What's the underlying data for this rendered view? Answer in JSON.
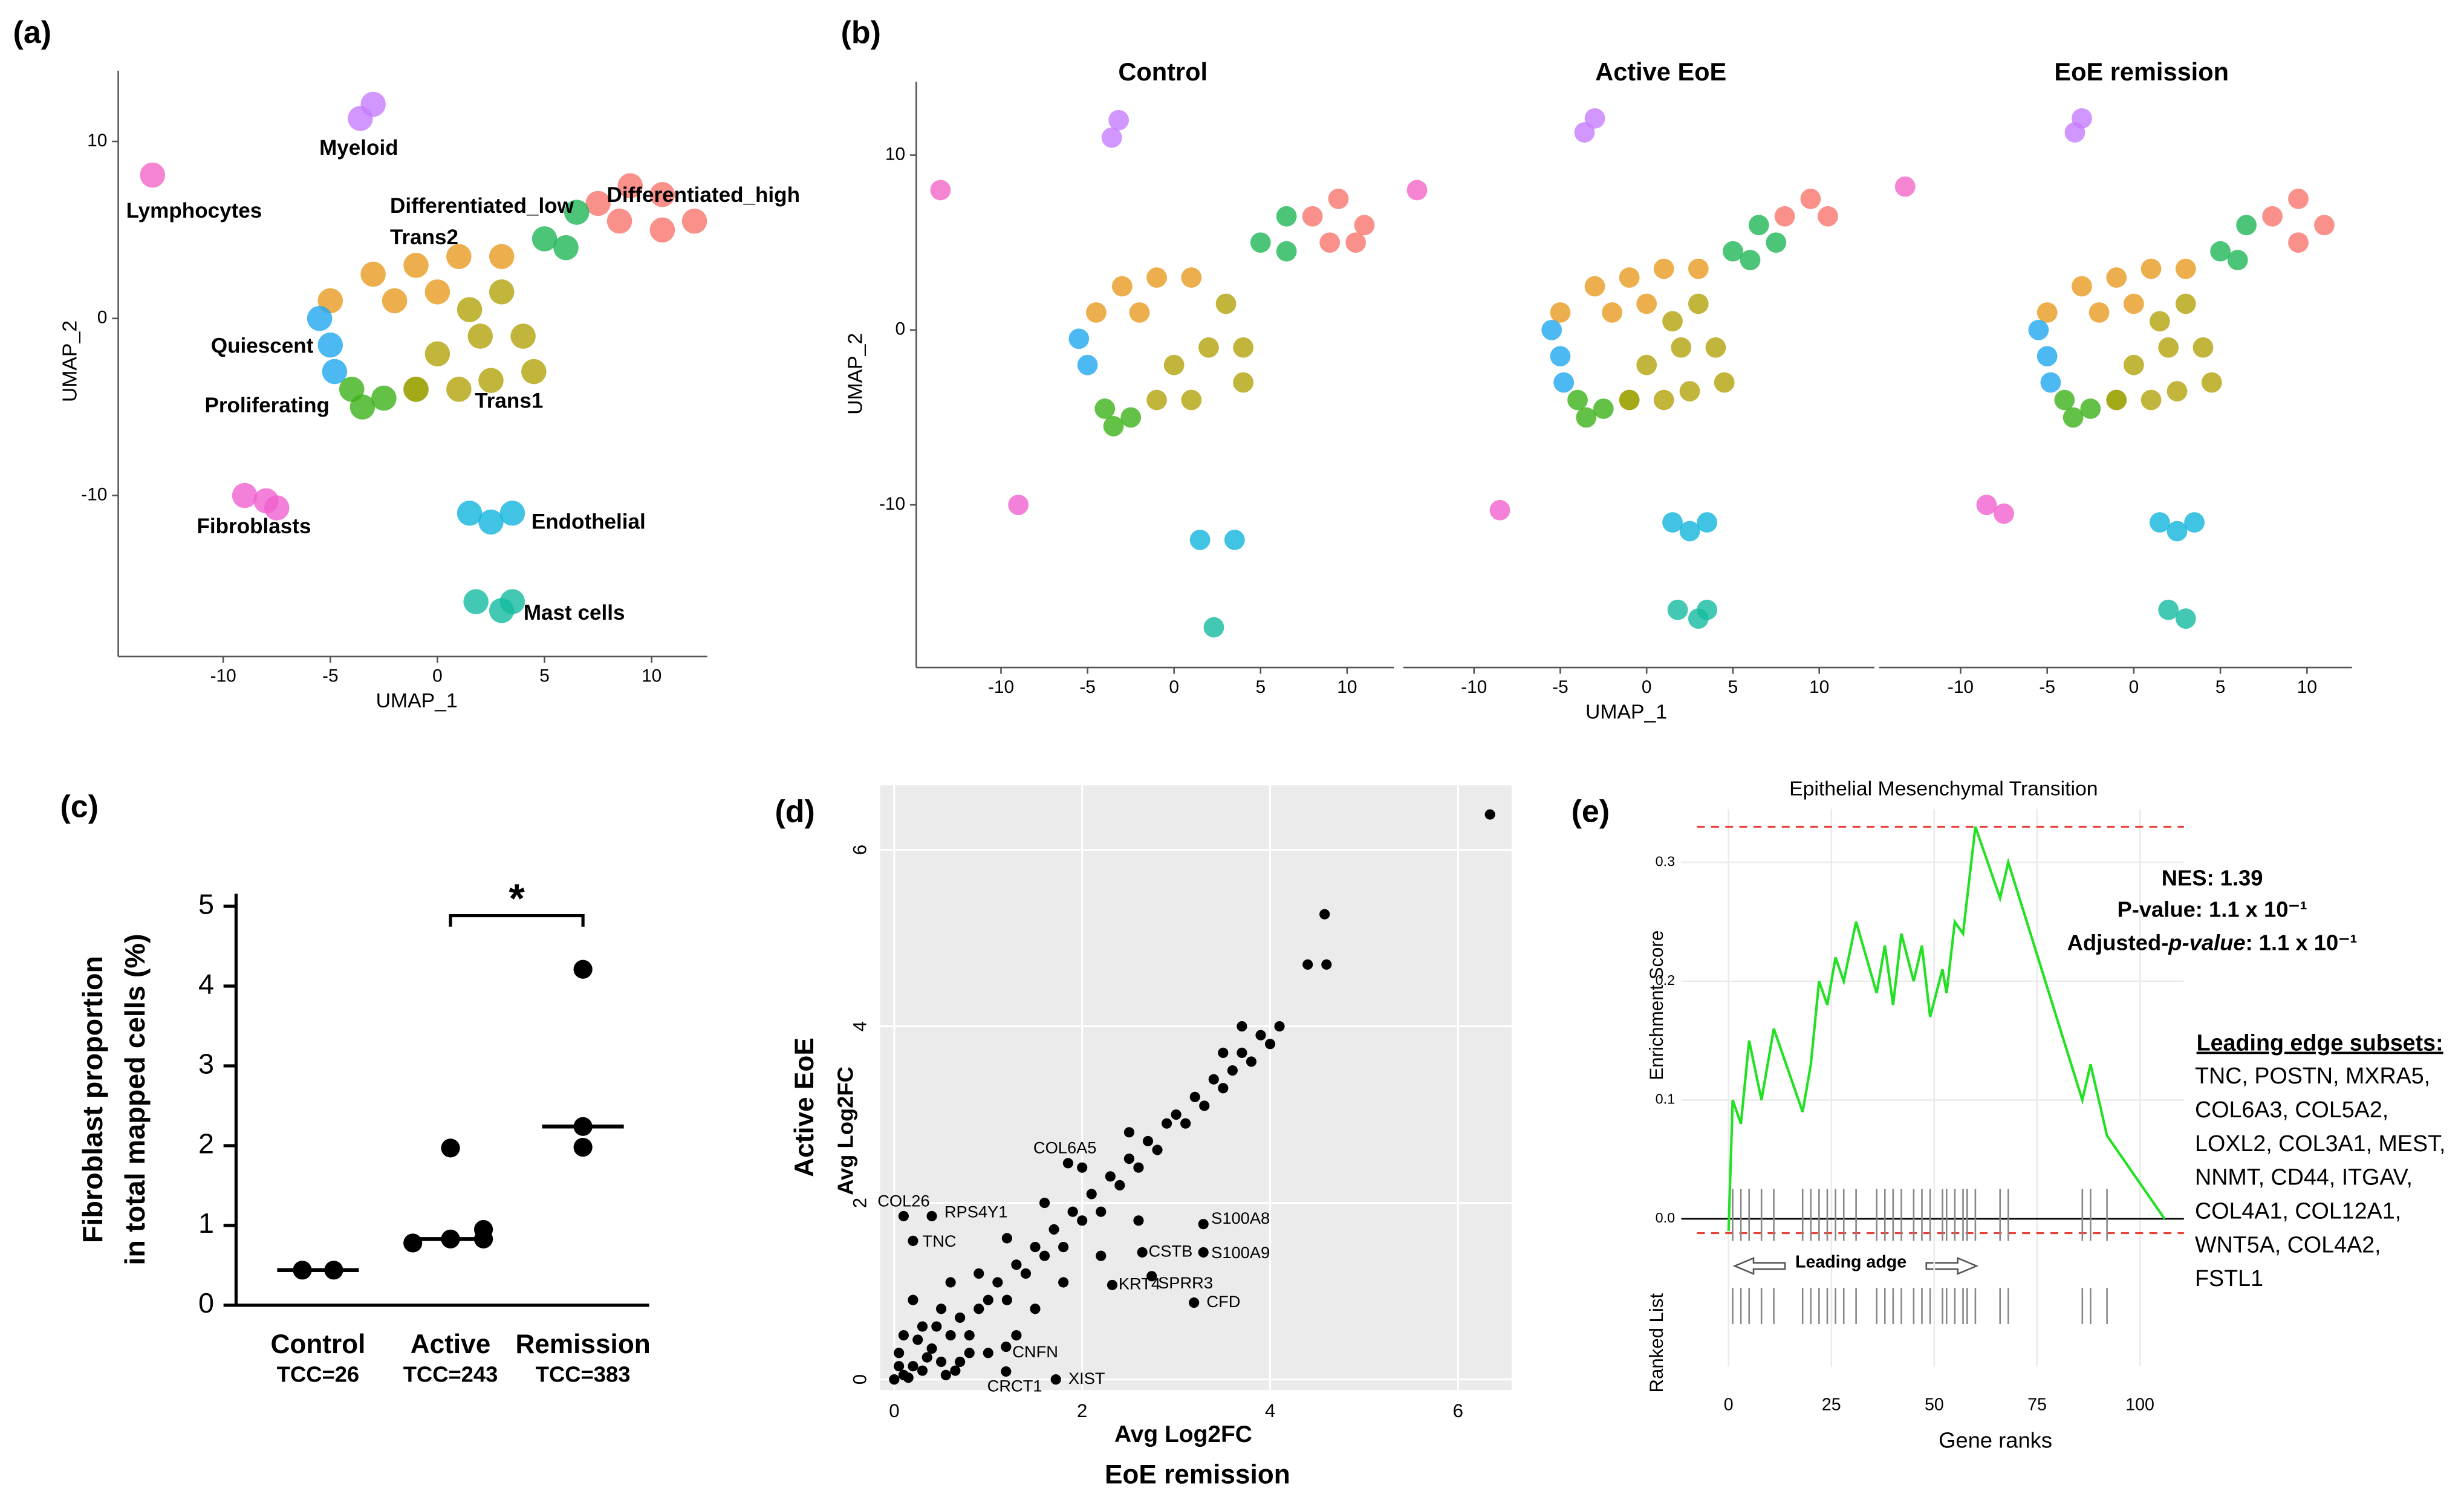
{
  "chart_data": [
    {
      "type": "scatter",
      "panel_label": "(a)",
      "xlabel": "UMAP_1",
      "ylabel": "UMAP_2",
      "xlim": [
        -14.9,
        12.6
      ],
      "ylim": [
        -19.1,
        14
      ],
      "xticks": [
        -10,
        -5,
        0,
        5,
        10
      ],
      "yticks": [
        -10,
        0,
        10
      ],
      "series": [
        {
          "name": "Lymphocytes",
          "color": "#f365c8",
          "x": [
            -13.3
          ],
          "y": [
            8.1
          ]
        },
        {
          "name": "Myeloid",
          "color": "#c77cff",
          "x": [
            -3.6,
            -3.0
          ],
          "y": [
            11.3,
            12.1
          ]
        },
        {
          "name": "Differentiated_high",
          "color": "#f8766d",
          "x": [
            7.5,
            9,
            10.5,
            12,
            8.5,
            10.5
          ],
          "y": [
            6.5,
            7.5,
            7,
            5.5,
            5.5,
            5
          ]
        },
        {
          "name": "Differentiated_low",
          "color": "#1fb757",
          "x": [
            5,
            6.5,
            6
          ],
          "y": [
            4.5,
            6,
            4
          ]
        },
        {
          "name": "Trans2",
          "color": "#e99b20",
          "x": [
            -5,
            -3,
            -1,
            1,
            3,
            -2,
            0
          ],
          "y": [
            1,
            2.5,
            3,
            3.5,
            3.5,
            1,
            1.5
          ]
        },
        {
          "name": "Quiescent",
          "color": "#1fa8ef",
          "x": [
            -5.5,
            -5,
            -4.8
          ],
          "y": [
            0,
            -1.5,
            -3
          ]
        },
        {
          "name": "Proliferating",
          "color": "#3cb21a",
          "x": [
            -4,
            -2.5,
            -1,
            -3.5
          ],
          "y": [
            -4,
            -4.5,
            -4,
            -5
          ]
        },
        {
          "name": "Trans1",
          "color": "#b3a30b",
          "x": [
            0,
            2,
            4,
            3,
            1,
            -1,
            4.5,
            2.5,
            1.5
          ],
          "y": [
            -2,
            -1,
            -1,
            1.5,
            -4,
            -4,
            -3,
            -3.5,
            0.5
          ]
        },
        {
          "name": "Fibroblasts",
          "color": "#f060d0",
          "x": [
            -9,
            -8,
            -7.5
          ],
          "y": [
            -10,
            -10.3,
            -10.7
          ]
        },
        {
          "name": "Endothelial",
          "color": "#12b4dc",
          "x": [
            1.5,
            2.5,
            3.5
          ],
          "y": [
            -11,
            -11.5,
            -11
          ]
        },
        {
          "name": "Mast cells",
          "color": "#14bca0",
          "x": [
            1.8,
            3,
            3.5
          ],
          "y": [
            -16,
            -16.5,
            -16
          ]
        }
      ]
    },
    {
      "type": "scatter",
      "panel_label": "(b)",
      "title": "Control",
      "ylabel": "UMAP_2",
      "xlim": [
        -14.9,
        12.7
      ],
      "ylim": [
        -19.3,
        14.2
      ],
      "xticks": [
        -10,
        -5,
        0,
        5,
        10
      ],
      "yticks": [
        -10,
        0,
        10
      ],
      "series": [
        {
          "color": "#f365c8",
          "x": [
            -13.5
          ],
          "y": [
            8
          ]
        },
        {
          "color": "#c77cff",
          "x": [
            -3.6,
            -3.2
          ],
          "y": [
            11,
            12
          ]
        },
        {
          "color": "#f8766d",
          "x": [
            8,
            9.5,
            11,
            9,
            10.5
          ],
          "y": [
            6.5,
            7.5,
            6,
            5,
            5
          ]
        },
        {
          "color": "#1fb757",
          "x": [
            5,
            6.5,
            6.5
          ],
          "y": [
            5,
            6.5,
            4.5
          ]
        },
        {
          "color": "#e99b20",
          "x": [
            -4.5,
            -3,
            -1,
            1,
            -2
          ],
          "y": [
            1,
            2.5,
            3,
            3,
            1
          ]
        },
        {
          "color": "#1fa8ef",
          "x": [
            -5.5,
            -5
          ],
          "y": [
            -0.5,
            -2
          ]
        },
        {
          "color": "#3cb21a",
          "x": [
            -4,
            -2.5,
            -3.5
          ],
          "y": [
            -4.5,
            -5,
            -5.5
          ]
        },
        {
          "color": "#b3a30b",
          "x": [
            0,
            2,
            4,
            3,
            1,
            -1,
            4
          ],
          "y": [
            -2,
            -1,
            -1,
            1.5,
            -4,
            -4,
            -3
          ]
        },
        {
          "color": "#f060d0",
          "x": [
            -9
          ],
          "y": [
            -10
          ]
        },
        {
          "color": "#12b4dc",
          "x": [
            1.5,
            3.5
          ],
          "y": [
            -12,
            -12
          ]
        },
        {
          "color": "#14bca0",
          "x": [
            2.3
          ],
          "y": [
            -17
          ]
        }
      ]
    },
    {
      "type": "scatter",
      "title": "Active EoE",
      "xlabel": "UMAP_1",
      "xlim": [
        -14.1,
        13.2
      ],
      "ylim": [
        -19.3,
        14.2
      ],
      "xticks": [
        -10,
        -5,
        0,
        5,
        10
      ],
      "series": [
        {
          "color": "#f365c8",
          "x": [
            -13.3
          ],
          "y": [
            8
          ]
        },
        {
          "color": "#c77cff",
          "x": [
            -3.6,
            -3.0
          ],
          "y": [
            11.3,
            12.1
          ]
        },
        {
          "color": "#f8766d",
          "x": [
            8,
            9.5,
            10.5
          ],
          "y": [
            6.5,
            7.5,
            6.5
          ]
        },
        {
          "color": "#1fb757",
          "x": [
            5,
            6.5,
            6,
            7.5
          ],
          "y": [
            4.5,
            6,
            4,
            5
          ]
        },
        {
          "color": "#e99b20",
          "x": [
            -5,
            -3,
            -1,
            1,
            3,
            -2,
            0
          ],
          "y": [
            1,
            2.5,
            3,
            3.5,
            3.5,
            1,
            1.5
          ]
        },
        {
          "color": "#1fa8ef",
          "x": [
            -5.5,
            -5,
            -4.8
          ],
          "y": [
            0,
            -1.5,
            -3
          ]
        },
        {
          "color": "#3cb21a",
          "x": [
            -4,
            -2.5,
            -1,
            -3.5
          ],
          "y": [
            -4,
            -4.5,
            -4,
            -5
          ]
        },
        {
          "color": "#b3a30b",
          "x": [
            0,
            2,
            4,
            3,
            1,
            -1,
            4.5,
            2.5,
            1.5
          ],
          "y": [
            -2,
            -1,
            -1,
            1.5,
            -4,
            -4,
            -3,
            -3.5,
            0.5
          ]
        },
        {
          "color": "#f060d0",
          "x": [
            -8.5
          ],
          "y": [
            -10.3
          ]
        },
        {
          "color": "#12b4dc",
          "x": [
            1.5,
            2.5,
            3.5
          ],
          "y": [
            -11,
            -11.5,
            -11
          ]
        },
        {
          "color": "#14bca0",
          "x": [
            1.8,
            3,
            3.5
          ],
          "y": [
            -16,
            -16.5,
            -16
          ]
        }
      ]
    },
    {
      "type": "scatter",
      "title": "EoE remission",
      "xlim": [
        -14.7,
        12.6
      ],
      "ylim": [
        -19.3,
        14.2
      ],
      "xticks": [
        -10,
        -5,
        0,
        5,
        10
      ],
      "series": [
        {
          "color": "#f365c8",
          "x": [
            -13.2
          ],
          "y": [
            8.2
          ]
        },
        {
          "color": "#c77cff",
          "x": [
            -3.4,
            -3.0
          ],
          "y": [
            11.3,
            12.1
          ]
        },
        {
          "color": "#f8766d",
          "x": [
            8,
            9.5,
            11,
            9.5
          ],
          "y": [
            6.5,
            7.5,
            6,
            5
          ]
        },
        {
          "color": "#1fb757",
          "x": [
            5,
            6.5,
            6
          ],
          "y": [
            4.5,
            6,
            4
          ]
        },
        {
          "color": "#e99b20",
          "x": [
            -5,
            -3,
            -1,
            1,
            3,
            -2,
            0
          ],
          "y": [
            1,
            2.5,
            3,
            3.5,
            3.5,
            1,
            1.5
          ]
        },
        {
          "color": "#1fa8ef",
          "x": [
            -5.5,
            -5,
            -4.8
          ],
          "y": [
            0,
            -1.5,
            -3
          ]
        },
        {
          "color": "#3cb21a",
          "x": [
            -4,
            -2.5,
            -1,
            -3.5
          ],
          "y": [
            -4,
            -4.5,
            -4,
            -5
          ]
        },
        {
          "color": "#b3a30b",
          "x": [
            0,
            2,
            4,
            3,
            1,
            -1,
            4.5,
            2.5,
            1.5
          ],
          "y": [
            -2,
            -1,
            -1,
            1.5,
            -4,
            -4,
            -3,
            -3.5,
            0.5
          ]
        },
        {
          "color": "#f060d0",
          "x": [
            -8.5,
            -7.5
          ],
          "y": [
            -10,
            -10.5
          ]
        },
        {
          "color": "#12b4dc",
          "x": [
            1.5,
            2.5,
            3.5
          ],
          "y": [
            -11,
            -11.5,
            -11
          ]
        },
        {
          "color": "#14bca0",
          "x": [
            2,
            3
          ],
          "y": [
            -16,
            -16.5
          ]
        }
      ]
    },
    {
      "type": "strip",
      "panel_label": "(c)",
      "ylabel": [
        "Fibroblast proportion",
        "in total mapped cells (%)"
      ],
      "ylim": [
        0,
        5
      ],
      "yticks": [
        0,
        1,
        2,
        3,
        4,
        5
      ],
      "categories": [
        "Control",
        "Active",
        "Remission"
      ],
      "category_notes": [
        "TCC=26",
        "TCC=243",
        "TCC=383"
      ],
      "values": [
        [
          0.44,
          0.44
        ],
        [
          0.78,
          0.83,
          1.97,
          0.83,
          0.95
        ],
        [
          4.21,
          2.24,
          1.98
        ]
      ],
      "medians": [
        0.44,
        0.83,
        2.24
      ],
      "significance": "*",
      "color": "#000000"
    },
    {
      "type": "scatter",
      "panel_label": "(d)",
      "background": "#ebebeb",
      "grid": true,
      "xlabel": [
        "Avg Log2FC",
        "EoE remission"
      ],
      "ylabel": [
        "Active EoE",
        "Avg Log2FC"
      ],
      "xlim": [
        -0.15,
        6.57
      ],
      "ylim": [
        -0.12,
        6.73
      ],
      "xticks": [
        0,
        2,
        4,
        6
      ],
      "yticks": [
        0,
        2,
        4,
        6
      ],
      "series": [
        {
          "color": "#000000",
          "x": [
            0,
            0.1,
            0.2,
            0.3,
            0.05,
            0.4,
            0.5,
            0.6,
            0.3,
            0.7,
            0.8,
            0.9,
            1.0,
            0.5,
            1.1,
            1.2,
            1.3,
            0.9,
            1.4,
            1.5,
            1.6,
            1.2,
            1.7,
            1.8,
            1.9,
            2.0,
            1.6,
            2.1,
            2.2,
            2.3,
            2.4,
            2.0,
            2.5,
            2.6,
            2.7,
            2.8,
            2.5,
            2.9,
            3.0,
            3.1,
            3.2,
            3.3,
            3.4,
            3.5,
            3.6,
            3.7,
            3.8,
            3.5,
            3.9,
            4.0,
            4.1,
            3.7,
            4.4,
            4.6,
            4.58,
            6.34,
            0.1,
            0.7,
            1.0,
            0.2,
            1.5,
            0.6,
            2.2,
            1.3,
            1.8,
            2.6,
            0.15,
            0.35,
            0.55,
            0.25,
            0.45,
            0.8,
            0.05,
            0.65
          ],
          "y": [
            0,
            0.05,
            0.15,
            0.1,
            0.3,
            0.35,
            0.2,
            0.5,
            0.6,
            0.7,
            0.5,
            0.8,
            0.9,
            0.8,
            1.1,
            0.9,
            1.3,
            1.2,
            1.2,
            1.5,
            1.4,
            1.6,
            1.7,
            1.5,
            1.9,
            1.8,
            2.0,
            2.1,
            1.9,
            2.3,
            2.2,
            2.4,
            2.5,
            2.4,
            2.7,
            2.6,
            2.8,
            2.9,
            3.0,
            2.9,
            3.2,
            3.1,
            3.4,
            3.3,
            3.5,
            3.7,
            3.6,
            3.7,
            3.9,
            3.8,
            4.0,
            4.0,
            4.7,
            4.7,
            5.27,
            6.4,
            0.5,
            0.2,
            0.3,
            0.9,
            0.8,
            1.1,
            1.4,
            0.5,
            1.1,
            1.8,
            0.02,
            0.25,
            0.05,
            0.45,
            0.6,
            0.3,
            0.15,
            0.1
          ]
        },
        {
          "color": "#000000",
          "labels": [
            "COL6A5",
            "COL26",
            "RPS4Y1",
            "TNC",
            "S100A8",
            "CSTB",
            "S100A9",
            "KRT4",
            "CFD",
            "SPRR3",
            "CNFN",
            "CRCT1",
            "XIST"
          ],
          "x": [
            1.85,
            0.1,
            0.4,
            0.2,
            3.29,
            2.64,
            3.29,
            2.32,
            3.19,
            2.74,
            1.19,
            1.19,
            1.72
          ],
          "y": [
            2.45,
            1.85,
            1.85,
            1.57,
            1.76,
            1.44,
            1.44,
            1.07,
            0.87,
            1.17,
            0.37,
            0.09,
            0
          ]
        }
      ]
    },
    {
      "type": "line",
      "panel_label": "(e)",
      "title": "Epithelial Mesenchymal Transition",
      "xlabel": "Gene ranks",
      "ylabel": "Enrichment Score",
      "ranked_list_label": "Ranked List",
      "xlim": [
        -11.5,
        110.7
      ],
      "ylim": [
        -0.0185,
        0.345
      ],
      "xticks": [
        0,
        25,
        50,
        75,
        100
      ],
      "yticks": [
        {
          "value": 0,
          "label": "0.0"
        },
        0.1,
        0.2,
        0.3
      ],
      "grid": true,
      "color": "#22e022",
      "x": [
        0,
        1,
        3,
        5,
        8,
        11,
        18,
        20,
        22,
        24,
        26,
        28,
        31,
        36,
        38,
        40,
        42,
        45,
        47,
        49,
        52,
        53,
        55,
        57,
        60,
        66,
        68,
        86,
        88,
        92,
        106
      ],
      "y": [
        -0.01,
        0.1,
        0.08,
        0.15,
        0.1,
        0.16,
        0.09,
        0.13,
        0.2,
        0.18,
        0.22,
        0.2,
        0.25,
        0.19,
        0.23,
        0.18,
        0.24,
        0.2,
        0.23,
        0.17,
        0.21,
        0.19,
        0.25,
        0.24,
        0.33,
        0.27,
        0.3,
        0.1,
        0.13,
        0.07,
        0
      ],
      "hits": [
        1,
        3,
        5,
        8,
        11,
        18,
        20,
        22,
        24,
        26,
        28,
        31,
        36,
        38,
        40,
        42,
        45,
        47,
        49,
        52,
        53,
        55,
        57,
        58,
        60,
        66,
        68,
        86,
        88,
        92
      ],
      "hlines": [
        0.33,
        -0.012
      ],
      "hline_color": "#e8403a",
      "annotations": [
        "NES: 1.39",
        "P-value: 1.1 x 10⁻¹"
      ],
      "annotation_parts": [
        "Adjusted-",
        "p-value",
        ": 1.1 x 10⁻¹"
      ],
      "leading_edge_label": "Leading adge",
      "leading_edge_title": "Leading edge subsets:",
      "leading_edge_genes": [
        "TNC, POSTN, MXRA5,",
        "COL6A3, COL5A2,",
        "LOXL2, COL3A1, MEST,",
        "NNMT, CD44, ITGAV,",
        "COL4A1, COL12A1,",
        "WNT5A, COL4A2,",
        "FSTL1"
      ]
    }
  ]
}
